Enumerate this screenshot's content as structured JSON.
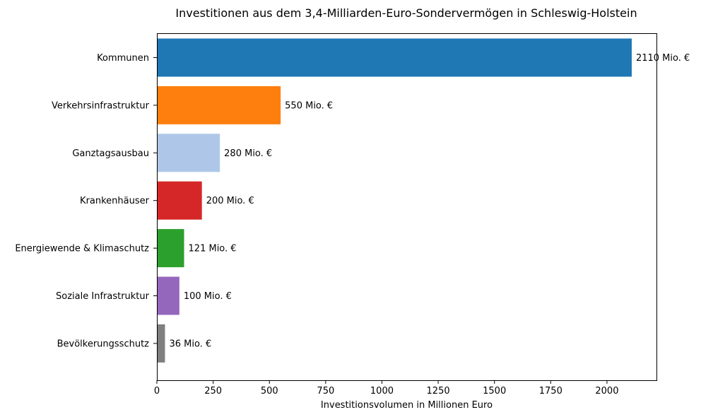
{
  "chart_data": {
    "type": "bar",
    "orientation": "horizontal",
    "title": "Investitionen aus dem 3,4-Milliarden-Euro-Sondervermögen in Schleswig-Holstein",
    "xlabel": "Investitionsvolumen in Millionen Euro",
    "ylabel": "",
    "xlim": [
      0,
      2220
    ],
    "xticks": [
      0,
      250,
      500,
      750,
      1000,
      1250,
      1500,
      1750,
      2000
    ],
    "grid": false,
    "legend": "none",
    "categories": [
      "Kommunen",
      "Verkehrsinfrastruktur",
      "Ganztagsausbau",
      "Krankenhäuser",
      "Energiewende & Klimaschutz",
      "Soziale Infrastruktur",
      "Bevölkerungsschutz"
    ],
    "values": [
      2110,
      550,
      280,
      200,
      121,
      100,
      36
    ],
    "value_labels": [
      "2110 Mio. €",
      "550 Mio. €",
      "280 Mio. €",
      "200 Mio. €",
      "121 Mio. €",
      "100 Mio. €",
      "36 Mio. €"
    ],
    "colors": [
      "#1f77b4",
      "#ff7f0e",
      "#aec7e8",
      "#d62728",
      "#2ca02c",
      "#9467bd",
      "#7f7f7f"
    ]
  }
}
